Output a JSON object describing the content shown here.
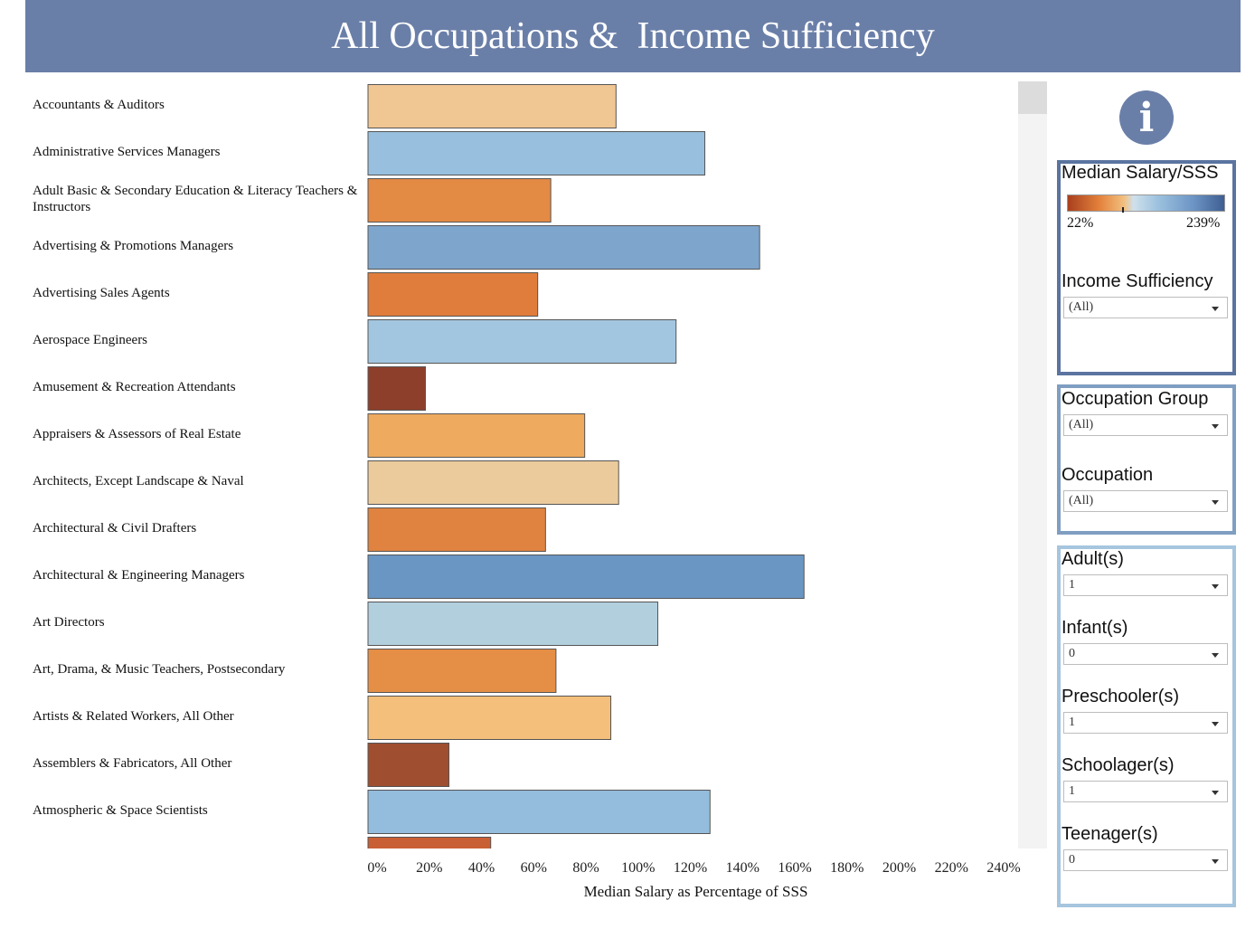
{
  "header": {
    "title": "All Occupations &  Income Sufficiency"
  },
  "chart_data": {
    "type": "bar",
    "orientation": "horizontal",
    "categories": [
      "Accountants & Auditors",
      "Administrative Services Managers",
      "Adult Basic & Secondary Education & Literacy Teachers & Instructors",
      "Advertising & Promotions Managers",
      "Advertising Sales Agents",
      "Aerospace Engineers",
      "Amusement & Recreation Attendants",
      "Appraisers & Assessors of Real Estate",
      "Architects, Except Landscape & Naval",
      "Architectural & Civil Drafters",
      "Architectural & Engineering Managers",
      "Art Directors",
      "Art, Drama, & Music Teachers, Postsecondary",
      "Artists & Related Workers, All Other",
      "Assemblers & Fabricators, All Other",
      "Atmospheric & Space Scientists",
      ""
    ],
    "values": [
      95,
      129,
      70,
      150,
      65,
      118,
      22,
      83,
      96,
      68,
      167,
      111,
      72,
      93,
      31,
      131,
      47
    ],
    "colors": [
      "#f0c692",
      "#98bfdd",
      "#e38a45",
      "#7ea6cd",
      "#e07d3c",
      "#a3c6e0",
      "#8e3f2c",
      "#eeaa5e",
      "#ebcb9c",
      "#e08340",
      "#6a96c4",
      "#b2cfde",
      "#e58e46",
      "#f3bf7a",
      "#a04e30",
      "#94bcdc",
      "#c95f34"
    ],
    "xlabel": "Median Salary as Percentage of SSS",
    "xlim": [
      0,
      240
    ],
    "xticks": [
      0,
      20,
      40,
      60,
      80,
      100,
      120,
      140,
      160,
      180,
      200,
      220,
      240
    ],
    "xtick_labels": [
      "0%",
      "20%",
      "40%",
      "60%",
      "80%",
      "100%",
      "120%",
      "140%",
      "160%",
      "180%",
      "200%",
      "220%",
      "240%"
    ],
    "grid": false
  },
  "legend": {
    "title": "Median Salary/SSS",
    "min_label": "22%",
    "max_label": "239%",
    "colors": [
      "#a93f1e",
      "#e3813b",
      "#f2c07f",
      "#cfe0ec",
      "#6d95c5",
      "#3e5e91"
    ]
  },
  "filters": {
    "income_sufficiency": {
      "label": "Income Sufficiency",
      "value": "(All)"
    },
    "occupation_group": {
      "label": "Occupation Group",
      "value": "(All)"
    },
    "occupation": {
      "label": "Occupation",
      "value": "(All)"
    },
    "adults": {
      "label": "Adult(s)",
      "value": "1"
    },
    "infants": {
      "label": "Infant(s)",
      "value": "0"
    },
    "preschoolers": {
      "label": "Preschooler(s)",
      "value": "1"
    },
    "schoolagers": {
      "label": "Schoolager(s)",
      "value": "1"
    },
    "teenagers": {
      "label": "Teenager(s)",
      "value": "0"
    }
  },
  "icons": {
    "info": "info-icon"
  }
}
